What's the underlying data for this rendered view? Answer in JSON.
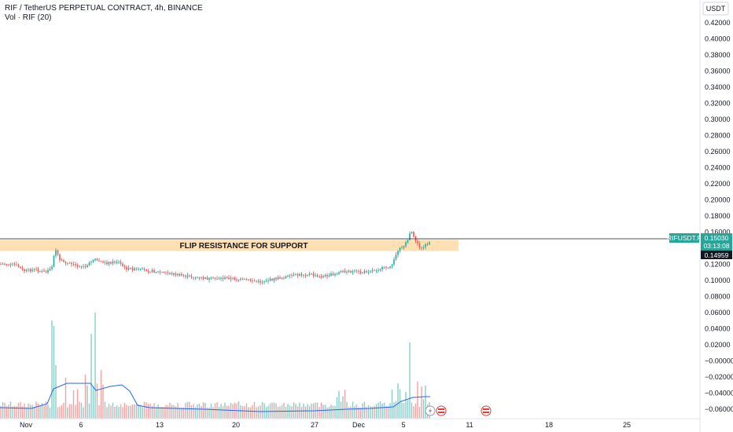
{
  "header": {
    "title": "RIF / TetherUS PERPETUAL CONTRACT, 4h, BINANCE",
    "volume_label": "Vol · RIF (20)"
  },
  "price_axis": {
    "currency": "USDT",
    "ticks": [
      "0.42000",
      "0.40000",
      "0.38000",
      "0.36000",
      "0.34000",
      "0.32000",
      "0.30000",
      "0.28000",
      "0.26000",
      "0.24000",
      "0.22000",
      "0.20000",
      "0.18000",
      "0.16000",
      "0.12000",
      "0.10000",
      "0.08000",
      "0.06000",
      "0.04000",
      "0.02000",
      "−0.00000",
      "−0.02000",
      "−0.04000",
      "−0.06000"
    ]
  },
  "time_axis": {
    "ticks": [
      "Nov",
      "6",
      "13",
      "20",
      "27",
      "Dec",
      "5",
      "11",
      "18",
      "25"
    ]
  },
  "annotation": {
    "zone_label": "FLIP RESISTANCE FOR SUPPORT",
    "zone_low": 0.1365,
    "zone_high": 0.1505
  },
  "tags": {
    "symbol": "RIFUSDT.P",
    "last_price": "0.15030",
    "countdown": "03:13:08",
    "marker_price": "0.14959"
  },
  "colors": {
    "up": "#26a69a",
    "down": "#ef5350",
    "zone": "#ffe0b2",
    "vol_ma": "#2962ff",
    "tag": "#26a69a"
  },
  "chart_data": {
    "type": "candlestick",
    "title": "RIF / TetherUS PERPETUAL CONTRACT, 4h, BINANCE",
    "ylim": [
      -0.067,
      0.43
    ],
    "x_ticks": [
      "Nov",
      "6",
      "13",
      "20",
      "27",
      "Dec",
      "5",
      "11",
      "18",
      "25"
    ],
    "series": [
      {
        "name": "RIF",
        "approx_close_path": [
          {
            "x": "Nov 1",
            "y": 0.12
          },
          {
            "x": "Nov 3",
            "y": 0.115
          },
          {
            "x": "Nov 4",
            "y": 0.13
          },
          {
            "x": "Nov 6",
            "y": 0.122
          },
          {
            "x": "Nov 8",
            "y": 0.125
          },
          {
            "x": "Nov 9",
            "y": 0.12
          },
          {
            "x": "Nov 13",
            "y": 0.11
          },
          {
            "x": "Nov 17",
            "y": 0.103
          },
          {
            "x": "Nov 21",
            "y": 0.099
          },
          {
            "x": "Nov 24",
            "y": 0.104
          },
          {
            "x": "Nov 27",
            "y": 0.108
          },
          {
            "x": "Nov 28",
            "y": 0.103
          },
          {
            "x": "Dec 1",
            "y": 0.111
          },
          {
            "x": "Dec 3",
            "y": 0.118
          },
          {
            "x": "Dec 5",
            "y": 0.15
          },
          {
            "x": "Dec 6",
            "y": 0.165
          },
          {
            "x": "Dec 6",
            "y": 0.145
          },
          {
            "x": "Dec 7",
            "y": 0.15
          }
        ]
      },
      {
        "name": "Vol · RIF (20)",
        "type": "volume"
      }
    ]
  }
}
